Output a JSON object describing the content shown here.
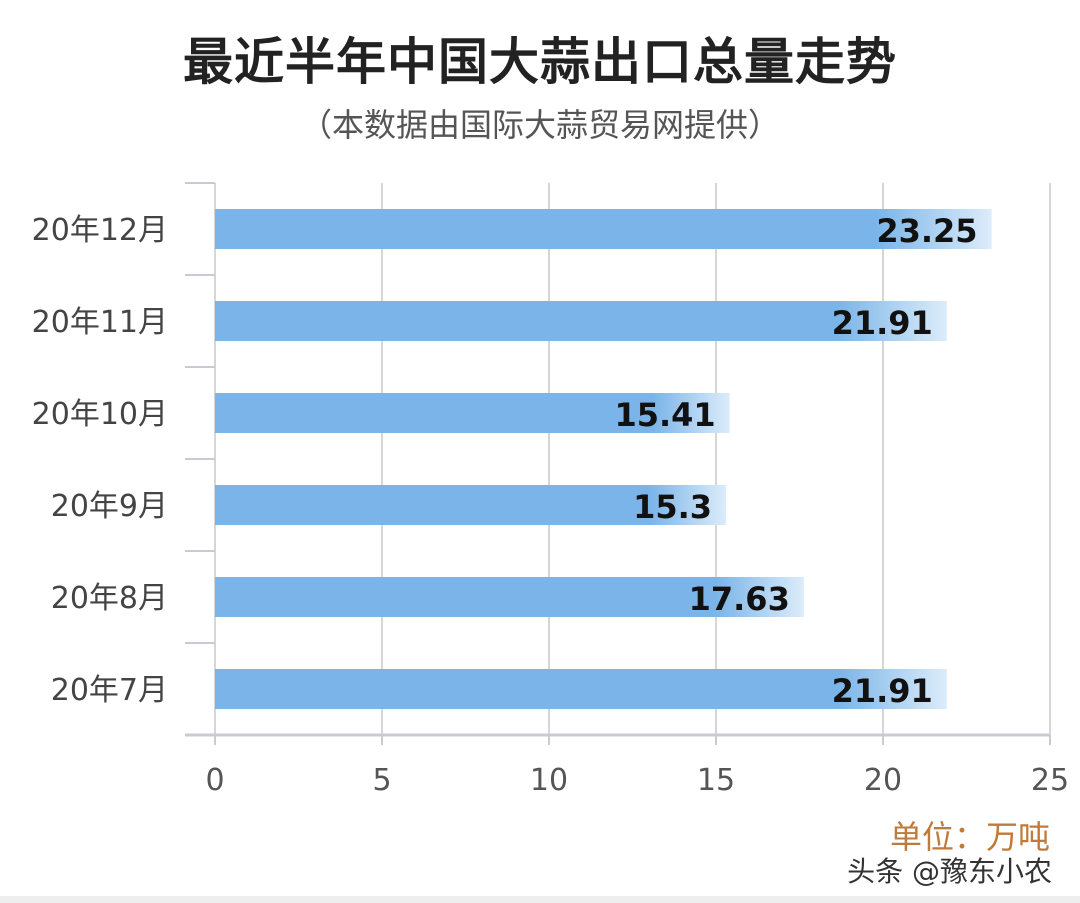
{
  "chart_data": {
    "type": "bar",
    "orientation": "horizontal",
    "title": "最近半年中国大蒜出口总量走势",
    "subtitle": "（本数据由国际大蒜贸易网提供）",
    "categories": [
      "20年12月",
      "20年11月",
      "20年10月",
      "20年9月",
      "20年8月",
      "20年7月"
    ],
    "values": [
      23.25,
      21.91,
      15.41,
      15.3,
      17.63,
      21.91
    ],
    "value_labels": [
      "23.25",
      "21.91",
      "15.41",
      "15.3",
      "17.63",
      "21.91"
    ],
    "xlim": [
      0,
      25
    ],
    "x_ticks": [
      "0",
      "5",
      "10",
      "15",
      "20",
      "25"
    ],
    "unit_label": "单位：万吨",
    "grid": true,
    "bar_color": "#7ab4e8"
  },
  "watermark": "头条 @豫东小农"
}
